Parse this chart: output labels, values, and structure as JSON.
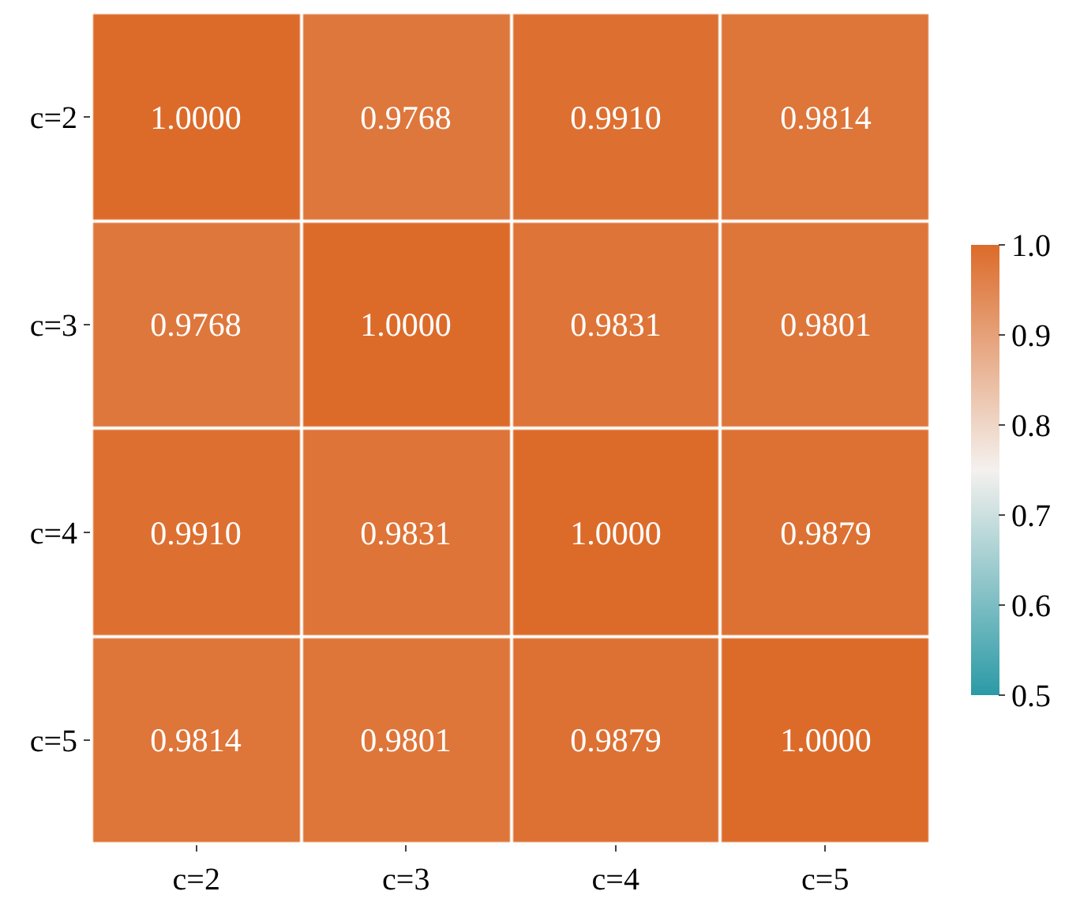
{
  "chart_data": {
    "type": "heatmap",
    "categories": [
      "c=2",
      "c=3",
      "c=4",
      "c=5"
    ],
    "y_categories": [
      "c=2",
      "c=3",
      "c=4",
      "c=5"
    ],
    "cells": [
      [
        1.0,
        0.9768,
        0.991,
        0.9814
      ],
      [
        0.9768,
        1.0,
        0.9831,
        0.9801
      ],
      [
        0.991,
        0.9831,
        1.0,
        0.9879
      ],
      [
        0.9814,
        0.9801,
        0.9879,
        1.0
      ]
    ],
    "cell_labels": [
      [
        "1.0000",
        "0.9768",
        "0.9910",
        "0.9814"
      ],
      [
        "0.9768",
        "1.0000",
        "0.9831",
        "0.9801"
      ],
      [
        "0.9910",
        "0.9831",
        "1.0000",
        "0.9879"
      ],
      [
        "0.9814",
        "0.9801",
        "0.9879",
        "1.0000"
      ]
    ],
    "clim": [
      0.5,
      1.0
    ],
    "cticks": [
      0.5,
      0.6,
      0.7,
      0.8,
      0.9,
      {
        "value": 1,
        "label": "1.0"
      }
    ]
  }
}
